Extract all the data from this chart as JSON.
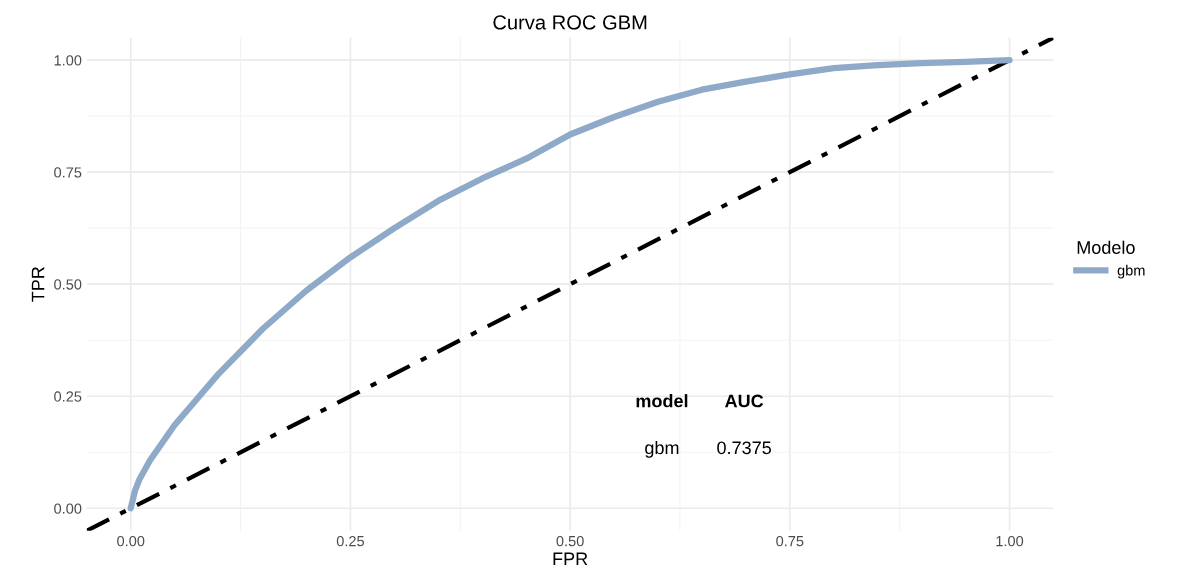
{
  "chart_data": {
    "type": "line",
    "title": "Curva ROC GBM",
    "xlabel": "FPR",
    "ylabel": "TPR",
    "legend_title": "Modelo",
    "series": [
      {
        "name": "gbm",
        "color": "#8fa9c9",
        "x": [
          0,
          0.005,
          0.01,
          0.022,
          0.05,
          0.1,
          0.15,
          0.2,
          0.25,
          0.3,
          0.35,
          0.4,
          0.45,
          0.5,
          0.55,
          0.6,
          0.65,
          0.7,
          0.75,
          0.8,
          0.85,
          0.9,
          0.95,
          1.0
        ],
        "values": [
          0,
          0.04,
          0.065,
          0.107,
          0.186,
          0.3,
          0.4,
          0.486,
          0.56,
          0.625,
          0.686,
          0.736,
          0.78,
          0.834,
          0.873,
          0.907,
          0.934,
          0.952,
          0.968,
          0.982,
          0.989,
          0.993,
          0.996,
          1.0
        ]
      },
      {
        "color": "#000000",
        "line_style": "dashdot",
        "x": [
          -0.05,
          1.05
        ],
        "values": [
          -0.05,
          1.05
        ]
      }
    ],
    "annotations": [
      "model",
      "AUC",
      "gbm",
      "0.7375"
    ],
    "xlim": [
      -0.05,
      1.05
    ],
    "ylim": [
      -0.05,
      1.05
    ],
    "xticks": [
      {
        "value": 0,
        "label": "0.00"
      },
      {
        "value": 0.25,
        "label": "0.25"
      },
      {
        "value": 0.5,
        "label": "0.50"
      },
      {
        "value": 0.75,
        "label": "0.75"
      },
      {
        "value": 1,
        "label": "1.00"
      }
    ],
    "yticks": [
      {
        "value": 0,
        "label": "0.00"
      },
      {
        "value": 0.25,
        "label": "0.25"
      },
      {
        "value": 0.5,
        "label": "0.50"
      },
      {
        "value": 0.75,
        "label": "0.75"
      },
      {
        "value": 1,
        "label": "1.00"
      }
    ],
    "grid": true,
    "legend": "right"
  }
}
